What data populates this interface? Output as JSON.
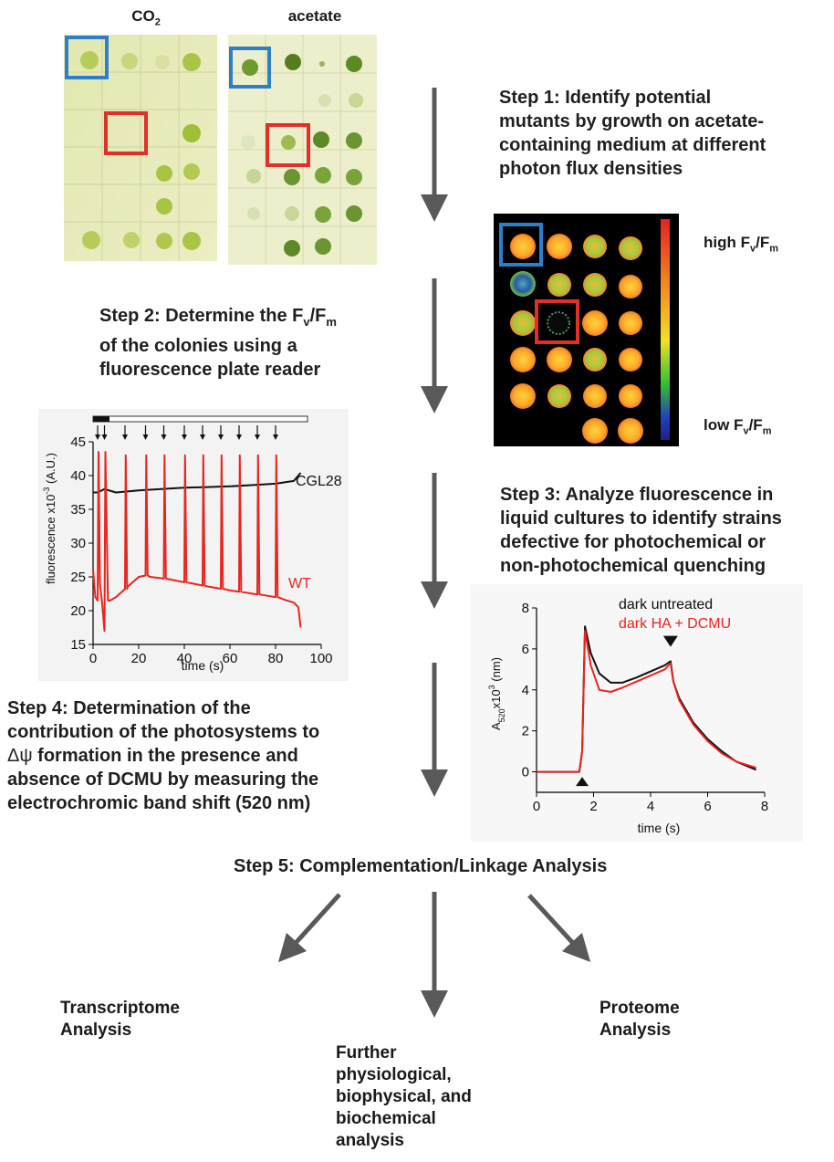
{
  "plates": {
    "co2_label": "CO",
    "co2_sub": "2",
    "acetate_label": "acetate"
  },
  "fluor_scale": {
    "high": "high F",
    "high_sub_v": "v",
    "high_sub_m": "m",
    "low": "low F",
    "low_sub_v": "v",
    "low_sub_m": "m"
  },
  "steps": {
    "step1": [
      "Step 1: Identify potential",
      "mutants by growth on acetate-",
      "containing medium at different",
      "photon flux densities"
    ],
    "step2_prefix": "Step 2: Determine the F",
    "step2_sub_v": "v",
    "step2_slash": "/F",
    "step2_sub_m": "m",
    "step2_rest": [
      "of the colonies using a",
      "fluorescence plate reader"
    ],
    "step3": [
      "Step 3: Analyze fluorescence in",
      "liquid cultures to identify strains",
      "defective for photochemical or",
      "non-photochemical quenching"
    ],
    "step4_line1": "Step 4: Determination of the",
    "step4_line2": "contribution of the photosystems to",
    "step4_line3_sym": "Δψ",
    "step4_line3": " formation in the presence and",
    "step4_line4": "absence of DCMU by measuring the",
    "step4_line5": "electrochromic band shift (520 nm)",
    "step5": "Step 5: Complementation/Linkage Analysis"
  },
  "outcomes": {
    "transcriptome": [
      "Transcriptome",
      "Analysis"
    ],
    "further": [
      "Further",
      "physiological,",
      "biophysical, and",
      "biochemical",
      "analysis"
    ],
    "proteome": [
      "Proteome",
      "Analysis"
    ]
  },
  "colors": {
    "wt": "#e8251f",
    "mutant": "#111111",
    "blue_box": "#2e7fc9",
    "red_box": "#e0302a",
    "arrow": "#595959"
  },
  "chart_data": [
    {
      "type": "line",
      "xlabel": "time (s)",
      "ylabel": "fluorescence x10",
      "ylabel_sup": "-3",
      "ylabel_unit": " (A.U.)",
      "xlim": [
        0,
        100
      ],
      "ylim": [
        15,
        45
      ],
      "xticks": [
        "0",
        "20",
        "40",
        "60",
        "80",
        "100"
      ],
      "yticks": [
        "15",
        "20",
        "25",
        "30",
        "35",
        "40",
        "45"
      ],
      "flash_times": [
        2,
        5,
        14,
        23,
        31,
        40,
        48,
        56,
        64,
        72,
        80
      ],
      "series": [
        {
          "name": "CGL28",
          "x": [
            0,
            2,
            5,
            10,
            20,
            30,
            40,
            50,
            60,
            70,
            80,
            88,
            91
          ],
          "y": [
            37.5,
            37.5,
            38,
            37.5,
            37.8,
            38,
            38.2,
            38.3,
            38.4,
            38.6,
            38.8,
            39.2,
            40.4
          ]
        },
        {
          "name": "WT",
          "x": [
            0,
            1,
            2,
            2.4,
            3,
            4,
            5,
            5.4,
            6.5,
            7.5,
            10,
            15,
            20,
            23,
            25,
            30,
            40,
            50,
            60,
            70,
            80,
            85,
            88,
            90,
            91
          ],
          "y": [
            26,
            22,
            21.5,
            43.5,
            24,
            21,
            17,
            43.5,
            21.5,
            21.5,
            22,
            23.5,
            25,
            25.2,
            25,
            24.8,
            24.2,
            23.6,
            23,
            22.5,
            22,
            21.5,
            21.2,
            20.5,
            17.5
          ]
        }
      ]
    },
    {
      "type": "line",
      "xlabel": "time (s)",
      "ylabel": "A",
      "ylabel_sub": "520",
      "ylabel_mid": "x10",
      "ylabel_sup": "3",
      "ylabel_unit": " (nm)",
      "xlim": [
        0,
        8
      ],
      "ylim": [
        -1,
        8
      ],
      "xticks": [
        "0",
        "2",
        "4",
        "6",
        "8"
      ],
      "yticks": [
        "0",
        "2",
        "4",
        "6",
        "8"
      ],
      "light_on": 1.6,
      "light_off": 4.7,
      "series": [
        {
          "name": "dark untreated",
          "x": [
            0,
            1.5,
            1.6,
            1.7,
            1.9,
            2.2,
            2.6,
            3.0,
            3.5,
            4.0,
            4.5,
            4.7,
            4.8,
            5.0,
            5.5,
            6.0,
            6.5,
            7.0,
            7.7
          ],
          "y": [
            0,
            0,
            1.0,
            7.1,
            5.8,
            4.8,
            4.35,
            4.35,
            4.6,
            4.9,
            5.2,
            5.4,
            4.4,
            3.6,
            2.4,
            1.6,
            1.0,
            0.5,
            0.1
          ]
        },
        {
          "name": "dark HA + DCMU",
          "x": [
            0,
            1.5,
            1.6,
            1.7,
            1.9,
            2.2,
            2.6,
            3.0,
            3.5,
            4.0,
            4.5,
            4.7,
            4.8,
            5.0,
            5.5,
            6.0,
            6.5,
            7.0,
            7.7
          ],
          "y": [
            0,
            0,
            1.0,
            6.9,
            5.2,
            4.0,
            3.9,
            4.1,
            4.4,
            4.7,
            5.0,
            5.3,
            4.4,
            3.5,
            2.3,
            1.5,
            0.9,
            0.5,
            0.2
          ]
        }
      ]
    }
  ]
}
